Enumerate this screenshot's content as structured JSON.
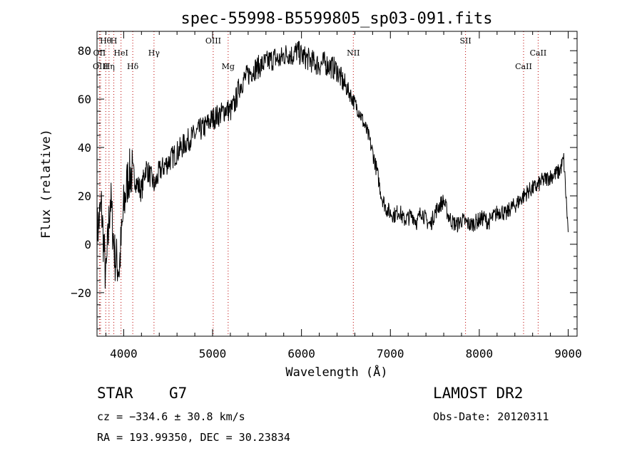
{
  "chart_data": {
    "type": "line",
    "title": "spec-55998-B5599805_sp03-091.fits",
    "xlabel": "Wavelength (Å)",
    "ylabel": "Flux (relative)",
    "xlim": [
      3700,
      9100
    ],
    "ylim": [
      -38,
      88
    ],
    "x_ticks": [
      4000,
      5000,
      6000,
      7000,
      8000,
      9000
    ],
    "x_tick_labels": [
      "4000",
      "5000",
      "6000",
      "7000",
      "8000",
      "9000"
    ],
    "y_ticks": [
      -20,
      0,
      20,
      40,
      60,
      80
    ],
    "y_tick_labels": [
      "−20",
      "0",
      "20",
      "40",
      "60",
      "80"
    ],
    "grid": false,
    "series": [
      {
        "x": [
          3700,
          3750,
          3800,
          3850,
          3900,
          3950,
          4000,
          4050,
          4100,
          4150,
          4200,
          4250,
          4300,
          4350,
          4400,
          4450,
          4500,
          4550,
          4600,
          4650,
          4700,
          4750,
          4800,
          4850,
          4900,
          4950,
          5000,
          5050,
          5100,
          5150,
          5200,
          5250,
          5300,
          5350,
          5400,
          5450,
          5500,
          5550,
          5600,
          5650,
          5700,
          5750,
          5800,
          5850,
          5900,
          5950,
          6000,
          6050,
          6100,
          6150,
          6200,
          6250,
          6300,
          6350,
          6400,
          6450,
          6500,
          6550,
          6600,
          6650,
          6700,
          6750,
          6800,
          6850,
          6900,
          6950,
          7000,
          7050,
          7100,
          7150,
          7200,
          7250,
          7300,
          7350,
          7400,
          7450,
          7500,
          7550,
          7600,
          7650,
          7700,
          7750,
          7800,
          7850,
          7900,
          7950,
          8000,
          8050,
          8100,
          8150,
          8200,
          8250,
          8300,
          8350,
          8400,
          8450,
          8500,
          8550,
          8600,
          8650,
          8700,
          8750,
          8800,
          8850,
          8900,
          8950,
          9000
        ],
        "y": [
          5,
          15,
          -15,
          20,
          -5,
          -10,
          15,
          28,
          30,
          25,
          22,
          32,
          28,
          24,
          30,
          32,
          34,
          36,
          38,
          40,
          42,
          44,
          45,
          47,
          48,
          50,
          52,
          53,
          54,
          56,
          55,
          58,
          65,
          68,
          70,
          72,
          73,
          74,
          75,
          76,
          77,
          76,
          78,
          79,
          78,
          80,
          78,
          77,
          76,
          75,
          74,
          75,
          74,
          73,
          72,
          68,
          65,
          62,
          58,
          55,
          50,
          45,
          38,
          30,
          20,
          15,
          13,
          12,
          14,
          10,
          11,
          12,
          9,
          14,
          10,
          8,
          13,
          16,
          18,
          12,
          9,
          8,
          10,
          9,
          8,
          9,
          10,
          11,
          9,
          11,
          13,
          14,
          12,
          15,
          16,
          18,
          20,
          22,
          23,
          24,
          26,
          27,
          28,
          29,
          30,
          35,
          5
        ]
      }
    ],
    "line_labels": [
      {
        "label": "Hθ",
        "x": 3798,
        "row": 1
      },
      {
        "label": "H",
        "x": 3889,
        "row": 1
      },
      {
        "label": "OII",
        "x": 3727,
        "row": 2
      },
      {
        "label": "HeI",
        "x": 3970,
        "row": 2
      },
      {
        "label": "Hγ",
        "x": 4341,
        "row": 2
      },
      {
        "label": "OIII",
        "x": 5007,
        "row": 1
      },
      {
        "label": "NII",
        "x": 6583,
        "row": 2
      },
      {
        "label": "SII",
        "x": 7845,
        "row": 1
      },
      {
        "label": "CaII",
        "x": 8662,
        "row": 2
      },
      {
        "label": "OIII",
        "x": 3740,
        "row": 3
      },
      {
        "label": "Hη",
        "x": 3835,
        "row": 3
      },
      {
        "label": "Hδ",
        "x": 4102,
        "row": 3
      },
      {
        "label": "Mg",
        "x": 5175,
        "row": 3
      },
      {
        "label": "CaII",
        "x": 8498,
        "row": 3
      }
    ]
  },
  "info": {
    "class": "STAR",
    "subclass": "G7",
    "cz": "cz = −334.6 ± 30.8 km/s",
    "radec": "RA = 193.99350, DEC =  30.23834",
    "survey": "LAMOST DR2",
    "obsdate": "Obs-Date: 20120311"
  }
}
